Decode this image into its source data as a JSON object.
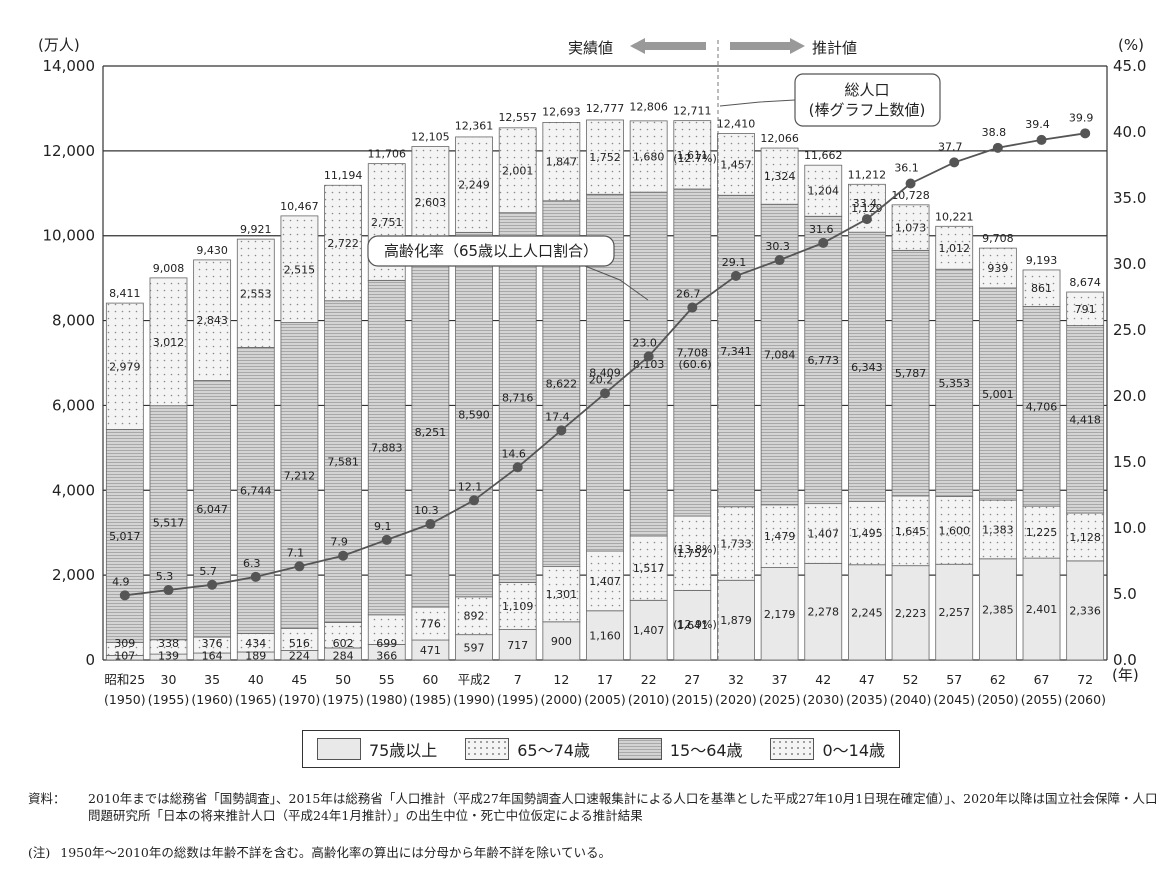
{
  "chart_data": {
    "type": "bar",
    "stacked": true,
    "y_unit_label": "(万人)",
    "y2_unit_label": "(%)",
    "x_unit_label": "(年)",
    "ylim": [
      0,
      14000
    ],
    "y2lim": [
      0,
      45
    ],
    "yticks": [
      "0",
      "2,000",
      "4,000",
      "6,000",
      "8,000",
      "10,000",
      "12,000",
      "14,000"
    ],
    "y2ticks": [
      "0.0",
      "5.0",
      "10.0",
      "15.0",
      "20.0",
      "25.0",
      "30.0",
      "35.0",
      "40.0",
      "45.0"
    ],
    "categories": [
      "昭和25",
      "30",
      "35",
      "40",
      "45",
      "50",
      "55",
      "60",
      "平成2",
      "7",
      "12",
      "17",
      "22",
      "27",
      "32",
      "37",
      "42",
      "47",
      "52",
      "57",
      "62",
      "67",
      "72"
    ],
    "years": [
      "(1950)",
      "(1955)",
      "(1960)",
      "(1965)",
      "(1970)",
      "(1975)",
      "(1980)",
      "(1985)",
      "(1990)",
      "(1995)",
      "(2000)",
      "(2005)",
      "(2010)",
      "(2015)",
      "(2020)",
      "(2025)",
      "(2030)",
      "(2035)",
      "(2040)",
      "(2045)",
      "(2050)",
      "(2055)",
      "(2060)"
    ],
    "series": [
      {
        "name": "75歳以上",
        "values": [
          107,
          139,
          164,
          189,
          224,
          284,
          366,
          471,
          597,
          717,
          900,
          1160,
          1407,
          1641,
          1879,
          2179,
          2278,
          2245,
          2223,
          2257,
          2385,
          2401,
          2336
        ],
        "labels": [
          "107",
          "139",
          "164",
          "189",
          "224",
          "284",
          "366",
          "471",
          "597",
          "717",
          "900",
          "1,160",
          "1,407",
          "1,641",
          "1,879",
          "2,179",
          "2,278",
          "2,245",
          "2,223",
          "2,257",
          "2,385",
          "2,401",
          "2,336"
        ]
      },
      {
        "name": "65～74歳",
        "values": [
          309,
          338,
          376,
          434,
          516,
          602,
          699,
          776,
          892,
          1109,
          1301,
          1407,
          1517,
          1752,
          1733,
          1479,
          1407,
          1495,
          1645,
          1600,
          1383,
          1225,
          1128
        ],
        "labels": [
          "309",
          "338",
          "376",
          "434",
          "516",
          "602",
          "699",
          "776",
          "892",
          "1,109",
          "1,301",
          "1,407",
          "1,517",
          "1,752",
          "1,733",
          "1,479",
          "1,407",
          "1,495",
          "1,645",
          "1,600",
          "1,383",
          "1,225",
          "1,128"
        ]
      },
      {
        "name": "15～64歳",
        "values": [
          5017,
          5517,
          6047,
          6744,
          7212,
          7581,
          7883,
          8251,
          8590,
          8716,
          8622,
          8409,
          8103,
          7708,
          7341,
          7084,
          6773,
          6343,
          5787,
          5353,
          5001,
          4706,
          4418
        ],
        "labels": [
          "5,017",
          "5,517",
          "6,047",
          "6,744",
          "7,212",
          "7,581",
          "7,883",
          "8,251",
          "8,590",
          "8,716",
          "8,622",
          "8,409",
          "8,103",
          "7,708",
          "7,341",
          "7,084",
          "6,773",
          "6,343",
          "5,787",
          "5,353",
          "5,001",
          "4,706",
          "4,418"
        ]
      },
      {
        "name": "0～14歳",
        "values": [
          2979,
          3012,
          2843,
          2553,
          2515,
          2722,
          2751,
          2603,
          2249,
          2001,
          1847,
          1752,
          1680,
          1611,
          1457,
          1324,
          1204,
          1129,
          1073,
          1012,
          939,
          861,
          791
        ],
        "labels": [
          "2,979",
          "3,012",
          "2,843",
          "2,553",
          "2,515",
          "2,722",
          "2,751",
          "2,603",
          "2,249",
          "2,001",
          "1,847",
          "1,752",
          "1,680",
          "1,611",
          "1,457",
          "1,324",
          "1,204",
          "1,129",
          "1,073",
          "1,012",
          "939",
          "861",
          "791"
        ]
      }
    ],
    "totals": [
      8411,
      9008,
      9430,
      9921,
      10467,
      11194,
      11706,
      12105,
      12361,
      12557,
      12693,
      12777,
      12806,
      12711,
      12410,
      12066,
      11662,
      11212,
      10728,
      10221,
      9708,
      9193,
      8674
    ],
    "total_labels": [
      "8,411",
      "9,008",
      "9,430",
      "9,921",
      "10,467",
      "11,194",
      "11,706",
      "12,105",
      "12,361",
      "12,557",
      "12,693",
      "12,777",
      "12,806",
      "12,711",
      "12,410",
      "12,066",
      "11,662",
      "11,212",
      "10,728",
      "10,221",
      "9,708",
      "9,193",
      "8,674"
    ],
    "aging_rate": {
      "name": "高齢化率（65歳以上人口割合）",
      "values": [
        4.9,
        5.3,
        5.7,
        6.3,
        7.1,
        7.9,
        9.1,
        10.3,
        12.1,
        14.6,
        17.4,
        20.2,
        23.0,
        26.7,
        29.1,
        30.3,
        31.6,
        33.4,
        36.1,
        37.7,
        38.8,
        39.4,
        39.9
      ],
      "labels": [
        "4.9",
        "5.3",
        "5.7",
        "6.3",
        "7.1",
        "7.9",
        "9.1",
        "10.3",
        "12.1",
        "14.6",
        "17.4",
        "20.2",
        "23.0",
        "26.7",
        "29.1",
        "30.3",
        "31.6",
        "33.4",
        "36.1",
        "37.7",
        "38.8",
        "39.4",
        "39.9"
      ]
    },
    "annotations_2015": {
      "share_0_14": "(12.7%)",
      "share_15_64": "(60.6)",
      "share_65_74": "(13.8%)",
      "share_75": "(12.9%)"
    },
    "actual_label": "実績値",
    "projection_label": "推計値",
    "total_callout": [
      "総人口",
      "(棒グラフ上数値)"
    ],
    "legend": [
      "75歳以上",
      "65～74歳",
      "15～64歳",
      "0～14歳"
    ]
  },
  "source": {
    "label": "資料：",
    "text": "2010年までは総務省「国勢調査」、2015年は総務省「人口推計（平成27年国勢調査人口速報集計による人口を基準とした平成27年10月1日現在確定値）」、2020年以降は国立社会保障・人口問題研究所「日本の将来推計人口（平成24年1月推計）」の出生中位・死亡中位仮定による推計結果"
  },
  "note": {
    "label": "(注)",
    "text": "1950年～2010年の総数は年齢不詳を含む。高齢化率の算出には分母から年齢不詳を除いている。"
  }
}
